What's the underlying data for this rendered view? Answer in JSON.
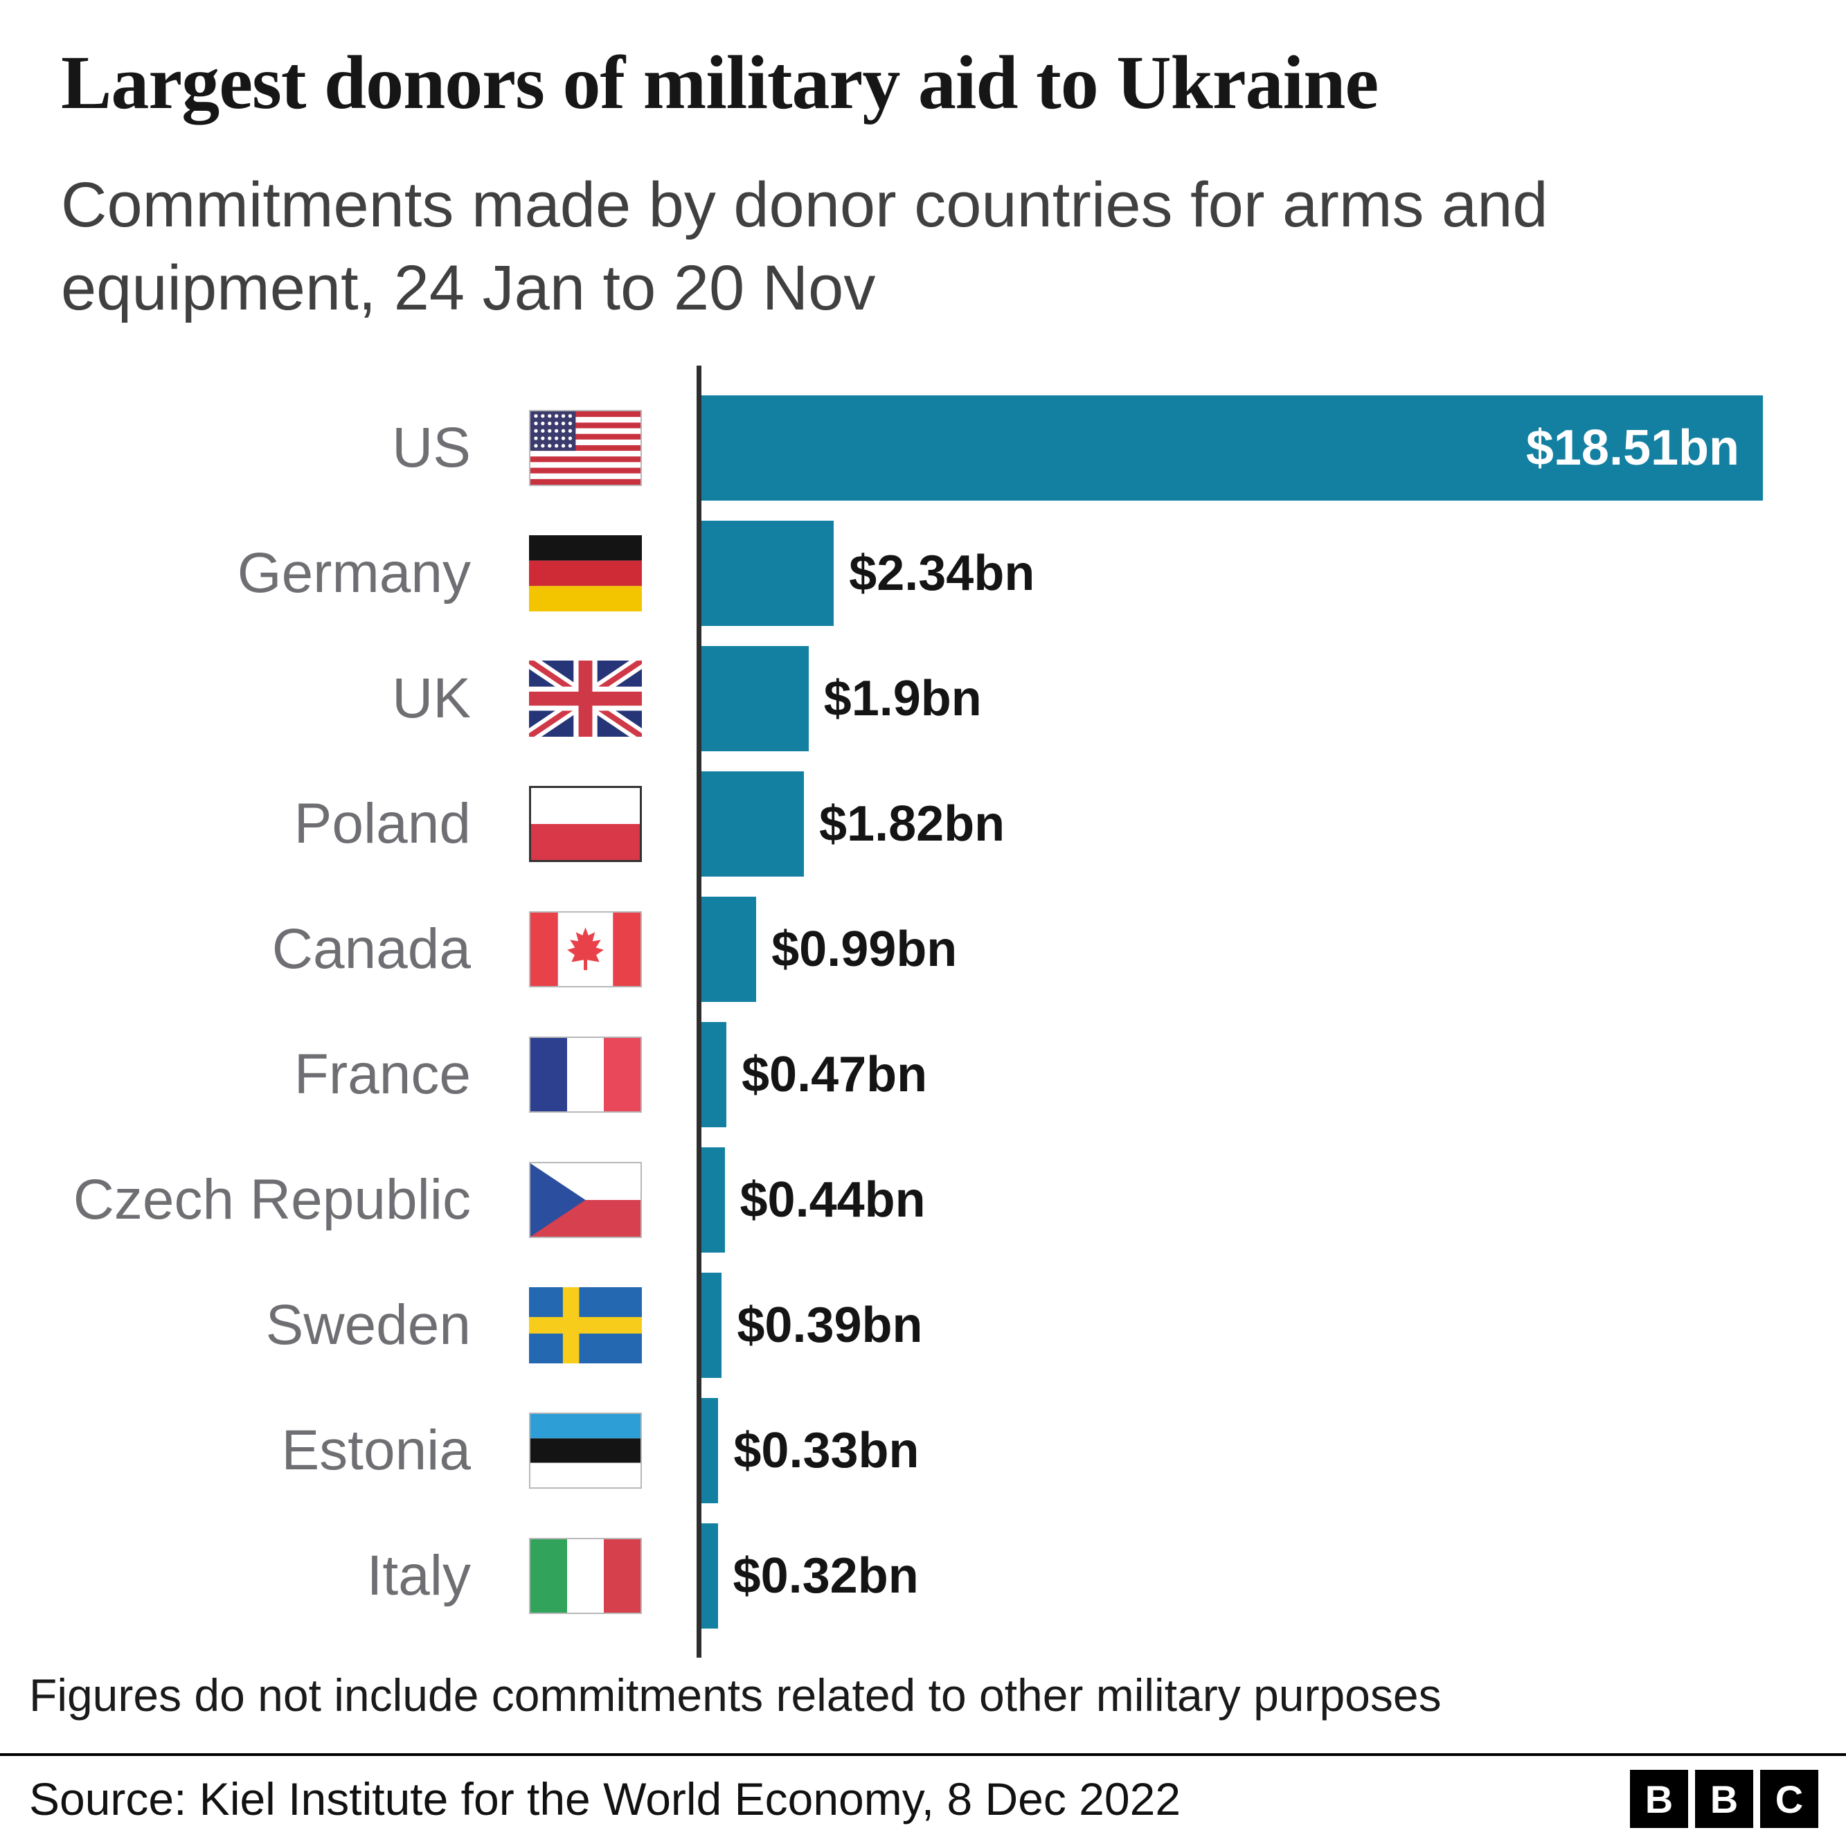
{
  "logo": {
    "letters": [
      "B",
      "B",
      "C"
    ]
  },
  "chart_data": {
    "type": "bar",
    "orientation": "horizontal",
    "title": "Largest donors of military aid to Ukraine",
    "subtitle": "Commitments made by donor countries for arms and equipment, 24 Jan to 20 Nov",
    "unit": "US$ billions",
    "bar_color": "#1380A1",
    "xlim": [
      0,
      18.51
    ],
    "grid": false,
    "legend": "none",
    "categories": [
      "US",
      "Germany",
      "UK",
      "Poland",
      "Canada",
      "France",
      "Czech Republic",
      "Sweden",
      "Estonia",
      "Italy"
    ],
    "values": [
      18.51,
      2.34,
      1.9,
      1.82,
      0.99,
      0.47,
      0.44,
      0.39,
      0.33,
      0.32
    ],
    "value_labels": [
      "$18.51bn",
      "$2.34bn",
      "$1.9bn",
      "$1.82bn",
      "$0.99bn",
      "$0.47bn",
      "$0.44bn",
      "$0.39bn",
      "$0.33bn",
      "$0.32bn"
    ],
    "flags": [
      "us",
      "germany",
      "uk",
      "poland",
      "canada",
      "france",
      "czech-republic",
      "sweden",
      "estonia",
      "italy"
    ],
    "footnote": "Figures do not include commitments related to other military purposes",
    "source": "Source: Kiel Institute for the World Economy, 8 Dec 2022"
  }
}
